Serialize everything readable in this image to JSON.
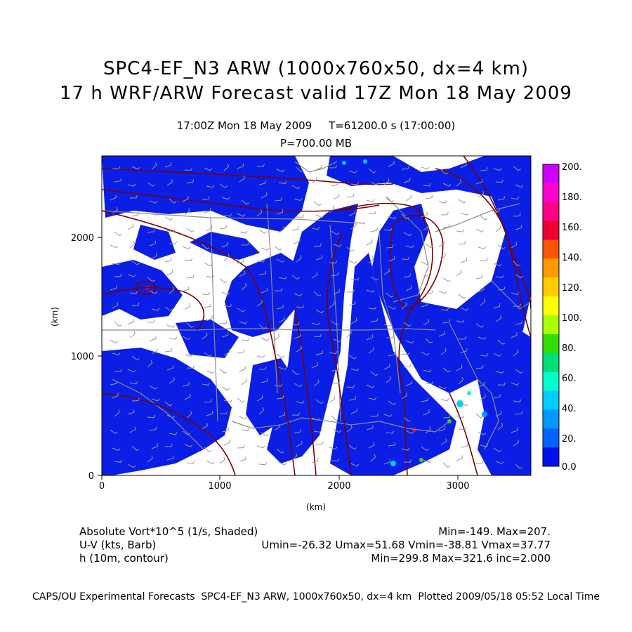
{
  "header": {
    "title_line1": "SPC4-EF_N3 ARW (1000x760x50, dx=4 km)",
    "title_line2": "17 h WRF/ARW Forecast valid 17Z Mon 18 May 2009",
    "time_line": "17:00Z Mon 18 May 2009     T=61200.0 s (17:00:00)",
    "level_line": "P=700.00 MB"
  },
  "axes": {
    "x_label": "(km)",
    "y_label": "(km)",
    "x_ticks": [
      "0",
      "1000",
      "2000",
      "3000"
    ],
    "y_ticks": [
      "0",
      "1000",
      "2000"
    ]
  },
  "colorbar": {
    "labels": [
      "200.",
      "180.",
      "160.",
      "140.",
      "120.",
      "100.",
      "80.",
      "60.",
      "40.",
      "20.",
      "0.0"
    ],
    "colors": [
      "#cc00ff",
      "#ff00cc",
      "#ff0088",
      "#ee0033",
      "#ff5500",
      "#ff9900",
      "#ffcc00",
      "#ffff00",
      "#aaff00",
      "#33dd00",
      "#00dd77",
      "#00ffcc",
      "#00ccff",
      "#0099ff",
      "#0066ff",
      "#0011ee"
    ]
  },
  "legend": {
    "field1_name": "Absolute Vort*10^5 (1/s, Shaded)",
    "field1_stats": "Min=-149. Max=207.",
    "field2_name": "U-V (kts, Barb)",
    "field2_stats": "Umin=-26.32 Umax=51.68 Vmin=-38.81 Vmax=37.77",
    "field3_name": "h (10m, contour)",
    "field3_stats": "Min=299.8 Max=321.6 inc=2.000"
  },
  "footer": {
    "caption": "CAPS/OU Experimental Forecasts  SPC4-EF_N3 ARW, 1000x760x50, dx=4 km  Plotted 2009/05/18 05:52 Local Time"
  },
  "colors": {
    "vorticity_fill": "#0a1ee6",
    "height_contour": "#7a0000",
    "map_boundary": "#8c8c8c",
    "wind_barb": "#9a9a9a"
  }
}
